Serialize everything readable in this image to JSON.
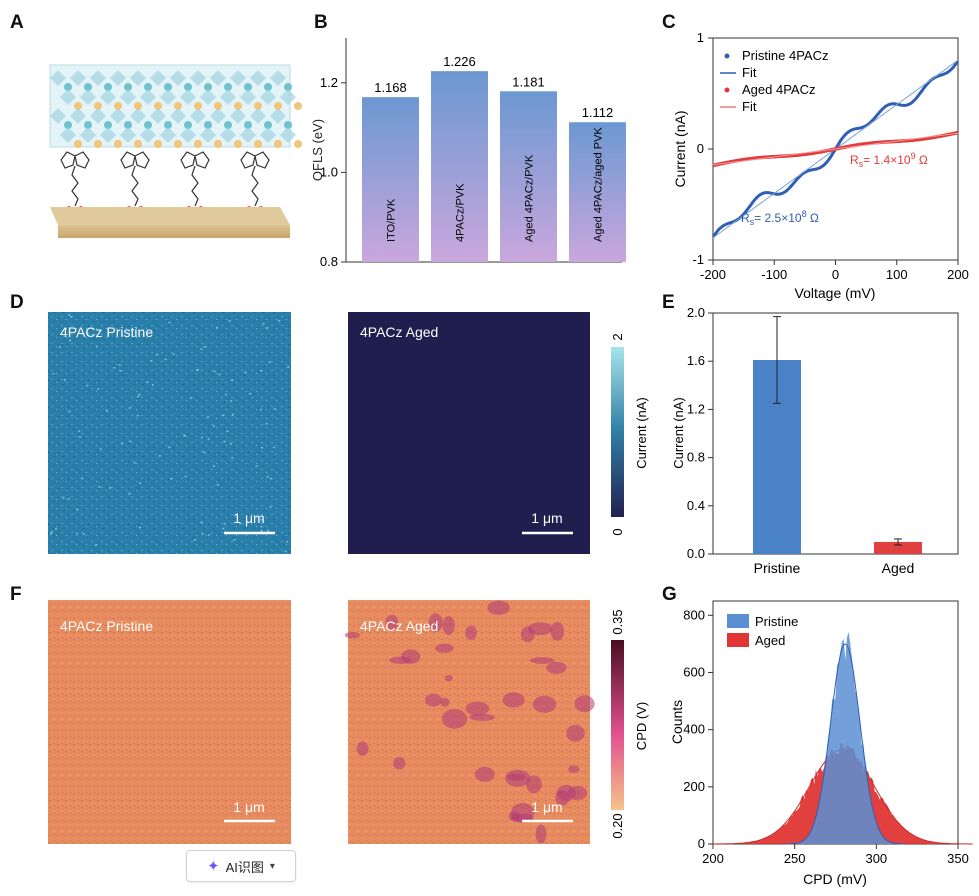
{
  "panels": {
    "a": {
      "letter": "A"
    },
    "b": {
      "letter": "B"
    },
    "c": {
      "letter": "C"
    },
    "d": {
      "letter": "D"
    },
    "e": {
      "letter": "E"
    },
    "f": {
      "letter": "F"
    },
    "g": {
      "letter": "G"
    }
  },
  "maps": {
    "d_left_label": "4PACz Pristine",
    "d_right_label": "4PACz Aged",
    "f_left_label": "4PACz Pristine",
    "f_right_label": "4PACz Aged",
    "scale_bar": "1 μm",
    "current_bar": {
      "label": "Current (nA)",
      "max": "2",
      "min": "0",
      "colors": {
        "top": "#a8e4ea",
        "mid": "#2f7ea5",
        "bottom": "#23204f"
      }
    },
    "cpd_bar": {
      "label": "CPD (V)",
      "max": "0.35",
      "min": "0.20",
      "colors": {
        "top": "#4a0d1f",
        "mid": "#e2508f",
        "bottom": "#f5c489"
      }
    }
  },
  "ai_button": {
    "label": "AI识图",
    "icon": "sparkle-icon",
    "chevron": "chevron-down-icon"
  },
  "chart_data": [
    {
      "id": "B",
      "type": "bar",
      "ylabel": "QFLS (eV)",
      "ylim": [
        0.8,
        1.3
      ],
      "yticks": [
        "0.8",
        "1.0",
        "1.2"
      ],
      "categories": [
        "ITO/PVK",
        "4PACz/PVK",
        "Aged 4PACz/PVK",
        "Aged 4PACz/aged PVK"
      ],
      "values": [
        1.168,
        1.226,
        1.181,
        1.112
      ],
      "value_labels": [
        "1.168",
        "1.226",
        "1.181",
        "1.112"
      ],
      "colors": {
        "top": "#6c98d2",
        "bottom": "#c9a7dc"
      }
    },
    {
      "id": "C",
      "type": "line",
      "xlabel": "Voltage (mV)",
      "ylabel": "Current (nA)",
      "xlim": [
        -200,
        200
      ],
      "ylim": [
        -1,
        1
      ],
      "xticks": [
        "-200",
        "-100",
        "0",
        "100",
        "200"
      ],
      "yticks": [
        "-1",
        "0",
        "1"
      ],
      "series": [
        {
          "name": "Pristine 4PACz",
          "color": "#2f5fb3",
          "resistance_ohm": 250000000.0,
          "wobble": 0.05
        },
        {
          "name": "Aged 4PACz",
          "color": "#e33b3b",
          "resistance_ohm": 1400000000.0,
          "wobble": 0.012
        }
      ],
      "legend": [
        "Pristine 4PACz",
        "Fit",
        "Aged 4PACz",
        "Fit"
      ],
      "annotations": {
        "pristine": {
          "base": "R",
          "sub": "s",
          "text": "= 2.5×10",
          "sup": "8",
          "unit": " Ω"
        },
        "aged": {
          "base": "R",
          "sub": "s",
          "text": "= 1.4×10",
          "sup": "9",
          "unit": " Ω"
        }
      }
    },
    {
      "id": "E",
      "type": "bar",
      "ylabel": "Current (nA)",
      "ylim": [
        0,
        2.0
      ],
      "yticks": [
        "0.0",
        "0.4",
        "0.8",
        "1.2",
        "1.6",
        "2.0"
      ],
      "categories": [
        "Pristine",
        "Aged"
      ],
      "values": [
        1.61,
        0.1
      ],
      "errors": [
        0.36,
        0.025
      ],
      "colors": [
        "#4a82c8",
        "#e04040"
      ]
    },
    {
      "id": "G",
      "type": "histogram",
      "xlabel": "CPD (mV)",
      "ylabel": "Counts",
      "xlim": [
        200,
        350
      ],
      "ylim": [
        0,
        850
      ],
      "xticks": [
        "200",
        "250",
        "300",
        "350"
      ],
      "yticks": [
        "0",
        "200",
        "400",
        "600",
        "800"
      ],
      "series": [
        {
          "name": "Pristine",
          "color": "#5b8fd4",
          "center": 281,
          "sigma": 9,
          "peak": 700
        },
        {
          "name": "Aged",
          "color": "#e03535",
          "center": 279,
          "sigma": 20,
          "peak": 330
        }
      ]
    }
  ]
}
